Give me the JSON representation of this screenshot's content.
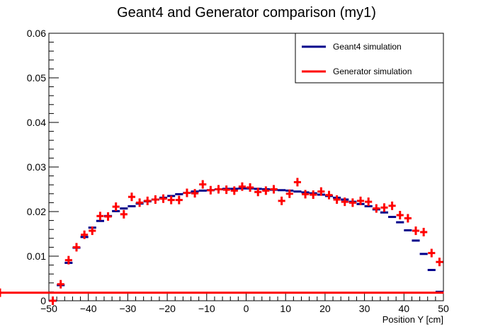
{
  "chart_data": {
    "type": "scatter",
    "title": "Geant4 and Generator comparison (my1)",
    "xlabel": "Position Y [cm]",
    "ylabel": "",
    "xlim": [
      -50,
      50
    ],
    "ylim": [
      0,
      0.06
    ],
    "x_ticks": [
      "−50",
      "−40",
      "−30",
      "−20",
      "−10",
      "0",
      "10",
      "20",
      "30",
      "40",
      "50"
    ],
    "y_ticks": [
      "0",
      "0.01",
      "0.02",
      "0.03",
      "0.04",
      "0.05",
      "0.06"
    ],
    "legend": {
      "placement": "top-right",
      "entries": [
        {
          "label": "Geant4 simulation",
          "color": "#00008b"
        },
        {
          "label": "Generator simulation",
          "color": "#ff0000"
        }
      ]
    },
    "bin_edges": [
      -50,
      -48,
      -46,
      -44,
      -42,
      -40,
      -38,
      -36,
      -34,
      -32,
      -30,
      -28,
      -26,
      -24,
      -22,
      -20,
      -18,
      -16,
      -14,
      -12,
      -10,
      -8,
      -6,
      -4,
      -2,
      0,
      2,
      4,
      6,
      8,
      10,
      12,
      14,
      16,
      18,
      20,
      22,
      24,
      26,
      28,
      30,
      32,
      34,
      36,
      38,
      40,
      42,
      44,
      46,
      48,
      50
    ],
    "series": [
      {
        "name": "Geant4 simulation",
        "color": "#00008b",
        "style": "step",
        "values": [
          0.0,
          0.0035,
          0.0085,
          0.0119,
          0.0143,
          0.0164,
          0.0179,
          0.019,
          0.0201,
          0.0207,
          0.0212,
          0.0218,
          0.0223,
          0.0227,
          0.0231,
          0.0235,
          0.0239,
          0.0242,
          0.0245,
          0.0247,
          0.0248,
          0.025,
          0.0251,
          0.0251,
          0.0252,
          0.0252,
          0.0251,
          0.025,
          0.0249,
          0.0248,
          0.0247,
          0.0245,
          0.0243,
          0.0241,
          0.0238,
          0.0235,
          0.0231,
          0.0227,
          0.0222,
          0.0217,
          0.0212,
          0.0205,
          0.0198,
          0.0188,
          0.0176,
          0.0158,
          0.0135,
          0.0105,
          0.0069,
          0.002
        ]
      },
      {
        "name": "Generator simulation",
        "color": "#ff0000",
        "style": "cross",
        "values": [
          0.0,
          0.0037,
          0.0091,
          0.012,
          0.0148,
          0.0157,
          0.019,
          0.0189,
          0.0211,
          0.0194,
          0.0233,
          0.022,
          0.0224,
          0.0227,
          0.0229,
          0.0226,
          0.0226,
          0.0242,
          0.0241,
          0.0261,
          0.0248,
          0.025,
          0.0249,
          0.0247,
          0.0256,
          0.0254,
          0.0244,
          0.0247,
          0.025,
          0.0224,
          0.024,
          0.0266,
          0.0239,
          0.0238,
          0.0245,
          0.0237,
          0.0227,
          0.0222,
          0.022,
          0.0224,
          0.0222,
          0.0207,
          0.0209,
          0.0213,
          0.0192,
          0.0185,
          0.0157,
          0.0154,
          0.0107,
          0.0087,
          0.0018
        ]
      }
    ]
  }
}
